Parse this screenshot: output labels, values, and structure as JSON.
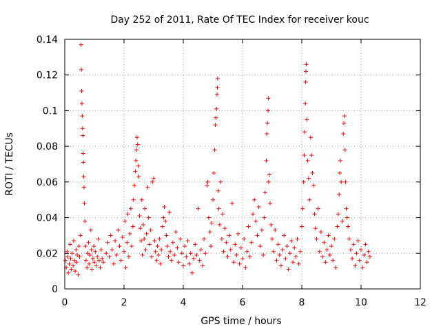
{
  "chart_data": {
    "type": "scatter",
    "title": "Day 252 of 2011, Rate Of TEC Index for receiver kouc",
    "xlabel": "GPS time / hours",
    "ylabel": "ROTI / TECUs",
    "xlim": [
      0,
      12
    ],
    "ylim": [
      0,
      0.14
    ],
    "xticks": [
      0,
      2,
      4,
      6,
      8,
      10,
      12
    ],
    "xtick_labels": [
      "0",
      "2",
      "4",
      "6",
      "8",
      "10",
      "12"
    ],
    "yticks": [
      0,
      0.02,
      0.04,
      0.06,
      0.08,
      0.1,
      0.12,
      0.14
    ],
    "ytick_labels": [
      "0",
      "0.02",
      "0.04",
      "0.06",
      "0.08",
      "0.1",
      "0.12",
      "0.14"
    ],
    "grid": true,
    "marker": "+",
    "marker_color": "#ff0000",
    "series": [
      {
        "points": [
          [
            0.02,
            0.016
          ],
          [
            0.05,
            0.012
          ],
          [
            0.08,
            0.021
          ],
          [
            0.1,
            0.018
          ],
          [
            0.12,
            0.009
          ],
          [
            0.15,
            0.014
          ],
          [
            0.18,
            0.025
          ],
          [
            0.2,
            0.017
          ],
          [
            0.22,
            0.011
          ],
          [
            0.25,
            0.02
          ],
          [
            0.28,
            0.013
          ],
          [
            0.3,
            0.027
          ],
          [
            0.32,
            0.016
          ],
          [
            0.35,
            0.01
          ],
          [
            0.38,
            0.022
          ],
          [
            0.4,
            0.015
          ],
          [
            0.42,
            0.019
          ],
          [
            0.45,
            0.008
          ],
          [
            0.48,
            0.024
          ],
          [
            0.5,
            0.018
          ],
          [
            0.53,
            0.03
          ],
          [
            0.55,
            0.137
          ],
          [
            0.56,
            0.123
          ],
          [
            0.57,
            0.111
          ],
          [
            0.58,
            0.104
          ],
          [
            0.59,
            0.097
          ],
          [
            0.6,
            0.09
          ],
          [
            0.61,
            0.086
          ],
          [
            0.62,
            0.076
          ],
          [
            0.63,
            0.071
          ],
          [
            0.64,
            0.063
          ],
          [
            0.65,
            0.057
          ],
          [
            0.66,
            0.048
          ],
          [
            0.68,
            0.038
          ],
          [
            0.7,
            0.024
          ],
          [
            0.72,
            0.016
          ],
          [
            0.75,
            0.012
          ],
          [
            0.78,
            0.02
          ],
          [
            0.8,
            0.026
          ],
          [
            0.82,
            0.014
          ],
          [
            0.85,
            0.019
          ],
          [
            0.88,
            0.033
          ],
          [
            0.9,
            0.022
          ],
          [
            0.92,
            0.011
          ],
          [
            0.95,
            0.017
          ],
          [
            0.98,
            0.024
          ],
          [
            1.0,
            0.015
          ],
          [
            1.03,
            0.021
          ],
          [
            1.06,
            0.013
          ],
          [
            1.1,
            0.018
          ],
          [
            1.13,
            0.028
          ],
          [
            1.16,
            0.016
          ],
          [
            1.2,
            0.012
          ],
          [
            1.23,
            0.022
          ],
          [
            1.26,
            0.017
          ],
          [
            1.3,
            0.015
          ],
          [
            1.4,
            0.02
          ],
          [
            1.45,
            0.026
          ],
          [
            1.5,
            0.018
          ],
          [
            1.55,
            0.03
          ],
          [
            1.6,
            0.022
          ],
          [
            1.65,
            0.014
          ],
          [
            1.7,
            0.027
          ],
          [
            1.75,
            0.019
          ],
          [
            1.8,
            0.033
          ],
          [
            1.85,
            0.024
          ],
          [
            1.9,
            0.016
          ],
          [
            1.95,
            0.029
          ],
          [
            2.0,
            0.021
          ],
          [
            2.03,
            0.038
          ],
          [
            2.06,
            0.012
          ],
          [
            2.1,
            0.026
          ],
          [
            2.13,
            0.042
          ],
          [
            2.16,
            0.018
          ],
          [
            2.2,
            0.031
          ],
          [
            2.23,
            0.045
          ],
          [
            2.26,
            0.024
          ],
          [
            2.3,
            0.035
          ],
          [
            2.32,
            0.05
          ],
          [
            2.35,
            0.058
          ],
          [
            2.38,
            0.066
          ],
          [
            2.4,
            0.072
          ],
          [
            2.42,
            0.078
          ],
          [
            2.44,
            0.085
          ],
          [
            2.46,
            0.081
          ],
          [
            2.48,
            0.069
          ],
          [
            2.5,
            0.063
          ],
          [
            2.52,
            0.041
          ],
          [
            2.55,
            0.034
          ],
          [
            2.58,
            0.027
          ],
          [
            2.6,
            0.05
          ],
          [
            2.62,
            0.019
          ],
          [
            2.65,
            0.036
          ],
          [
            2.68,
            0.028
          ],
          [
            2.7,
            0.045
          ],
          [
            2.73,
            0.022
          ],
          [
            2.76,
            0.031
          ],
          [
            2.8,
            0.057
          ],
          [
            2.83,
            0.04
          ],
          [
            2.86,
            0.025
          ],
          [
            2.9,
            0.033
          ],
          [
            2.93,
            0.018
          ],
          [
            2.96,
            0.06
          ],
          [
            3.0,
            0.062
          ],
          [
            3.03,
            0.027
          ],
          [
            3.06,
            0.021
          ],
          [
            3.1,
            0.016
          ],
          [
            3.13,
            0.024
          ],
          [
            3.16,
            0.019
          ],
          [
            3.2,
            0.028
          ],
          [
            3.23,
            0.014
          ],
          [
            3.26,
            0.022
          ],
          [
            3.3,
            0.035
          ],
          [
            3.33,
            0.04
          ],
          [
            3.36,
            0.046
          ],
          [
            3.4,
            0.038
          ],
          [
            3.43,
            0.03
          ],
          [
            3.46,
            0.024
          ],
          [
            3.5,
            0.018
          ],
          [
            3.53,
            0.043
          ],
          [
            3.56,
            0.021
          ],
          [
            3.6,
            0.016
          ],
          [
            3.65,
            0.026
          ],
          [
            3.7,
            0.019
          ],
          [
            3.75,
            0.032
          ],
          [
            3.8,
            0.023
          ],
          [
            3.85,
            0.015
          ],
          [
            3.9,
            0.028
          ],
          [
            3.95,
            0.02
          ],
          [
            4.0,
            0.013
          ],
          [
            4.05,
            0.024
          ],
          [
            4.1,
            0.018
          ],
          [
            4.15,
            0.027
          ],
          [
            4.2,
            0.014
          ],
          [
            4.25,
            0.02
          ],
          [
            4.3,
            0.009
          ],
          [
            4.35,
            0.017
          ],
          [
            4.4,
            0.025
          ],
          [
            4.45,
            0.019
          ],
          [
            4.5,
            0.045
          ],
          [
            4.55,
            0.016
          ],
          [
            4.6,
            0.022
          ],
          [
            4.65,
            0.013
          ],
          [
            4.7,
            0.028
          ],
          [
            4.75,
            0.02
          ],
          [
            4.8,
            0.058
          ],
          [
            4.83,
            0.06
          ],
          [
            4.86,
            0.04
          ],
          [
            4.9,
            0.032
          ],
          [
            4.93,
            0.024
          ],
          [
            4.96,
            0.037
          ],
          [
            5.0,
            0.05
          ],
          [
            5.03,
            0.065
          ],
          [
            5.06,
            0.078
          ],
          [
            5.08,
            0.092
          ],
          [
            5.1,
            0.096
          ],
          [
            5.12,
            0.101
          ],
          [
            5.14,
            0.109
          ],
          [
            5.15,
            0.113
          ],
          [
            5.16,
            0.118
          ],
          [
            5.18,
            0.055
          ],
          [
            5.2,
            0.045
          ],
          [
            5.23,
            0.036
          ],
          [
            5.26,
            0.06
          ],
          [
            5.3,
            0.028
          ],
          [
            5.33,
            0.042
          ],
          [
            5.36,
            0.021
          ],
          [
            5.4,
            0.034
          ],
          [
            5.45,
            0.026
          ],
          [
            5.5,
            0.018
          ],
          [
            5.55,
            0.03
          ],
          [
            5.6,
            0.022
          ],
          [
            5.65,
            0.048
          ],
          [
            5.7,
            0.015
          ],
          [
            5.75,
            0.025
          ],
          [
            5.8,
            0.019
          ],
          [
            5.85,
            0.031
          ],
          [
            5.9,
            0.014
          ],
          [
            5.95,
            0.023
          ],
          [
            6.0,
            0.017
          ],
          [
            6.05,
            0.028
          ],
          [
            6.1,
            0.012
          ],
          [
            6.15,
            0.021
          ],
          [
            6.2,
            0.035
          ],
          [
            6.25,
            0.018
          ],
          [
            6.3,
            0.026
          ],
          [
            6.35,
            0.042
          ],
          [
            6.4,
            0.05
          ],
          [
            6.45,
            0.038
          ],
          [
            6.5,
            0.03
          ],
          [
            6.55,
            0.046
          ],
          [
            6.6,
            0.024
          ],
          [
            6.65,
            0.033
          ],
          [
            6.7,
            0.019
          ],
          [
            6.73,
            0.04
          ],
          [
            6.76,
            0.054
          ],
          [
            6.8,
            0.072
          ],
          [
            6.82,
            0.087
          ],
          [
            6.84,
            0.093
          ],
          [
            6.86,
            0.1
          ],
          [
            6.87,
            0.107
          ],
          [
            6.88,
            0.06
          ],
          [
            6.9,
            0.064
          ],
          [
            6.93,
            0.048
          ],
          [
            6.96,
            0.036
          ],
          [
            7.0,
            0.028
          ],
          [
            7.05,
            0.021
          ],
          [
            7.1,
            0.033
          ],
          [
            7.15,
            0.016
          ],
          [
            7.2,
            0.025
          ],
          [
            7.25,
            0.019
          ],
          [
            7.3,
            0.013
          ],
          [
            7.35,
            0.022
          ],
          [
            7.4,
            0.03
          ],
          [
            7.45,
            0.017
          ],
          [
            7.5,
            0.024
          ],
          [
            7.55,
            0.011
          ],
          [
            7.6,
            0.02
          ],
          [
            7.65,
            0.027
          ],
          [
            7.7,
            0.015
          ],
          [
            7.75,
            0.023
          ],
          [
            7.8,
            0.018
          ],
          [
            7.85,
            0.028
          ],
          [
            7.9,
            0.014
          ],
          [
            7.95,
            0.021
          ],
          [
            8.0,
            0.035
          ],
          [
            8.03,
            0.045
          ],
          [
            8.06,
            0.06
          ],
          [
            8.08,
            0.075
          ],
          [
            8.1,
            0.088
          ],
          [
            8.12,
            0.104
          ],
          [
            8.13,
            0.116
          ],
          [
            8.14,
            0.122
          ],
          [
            8.15,
            0.126
          ],
          [
            8.17,
            0.095
          ],
          [
            8.2,
            0.072
          ],
          [
            8.23,
            0.062
          ],
          [
            8.26,
            0.05
          ],
          [
            8.3,
            0.085
          ],
          [
            8.33,
            0.075
          ],
          [
            8.36,
            0.065
          ],
          [
            8.4,
            0.058
          ],
          [
            8.43,
            0.042
          ],
          [
            8.46,
            0.034
          ],
          [
            8.5,
            0.028
          ],
          [
            8.55,
            0.045
          ],
          [
            8.6,
            0.021
          ],
          [
            8.65,
            0.032
          ],
          [
            8.7,
            0.018
          ],
          [
            8.75,
            0.026
          ],
          [
            8.8,
            0.015
          ],
          [
            8.85,
            0.022
          ],
          [
            8.9,
            0.03
          ],
          [
            8.95,
            0.019
          ],
          [
            9.0,
            0.024
          ],
          [
            9.05,
            0.016
          ],
          [
            9.1,
            0.028
          ],
          [
            9.15,
            0.012
          ],
          [
            9.2,
            0.035
          ],
          [
            9.23,
            0.042
          ],
          [
            9.26,
            0.053
          ],
          [
            9.28,
            0.065
          ],
          [
            9.3,
            0.072
          ],
          [
            9.33,
            0.06
          ],
          [
            9.36,
            0.038
          ],
          [
            9.4,
            0.087
          ],
          [
            9.42,
            0.093
          ],
          [
            9.44,
            0.097
          ],
          [
            9.46,
            0.078
          ],
          [
            9.48,
            0.06
          ],
          [
            9.5,
            0.045
          ],
          [
            9.53,
            0.04
          ],
          [
            9.56,
            0.035
          ],
          [
            9.6,
            0.028
          ],
          [
            9.65,
            0.022
          ],
          [
            9.7,
            0.017
          ],
          [
            9.75,
            0.025
          ],
          [
            9.8,
            0.013
          ],
          [
            9.85,
            0.02
          ],
          [
            9.9,
            0.027
          ],
          [
            9.95,
            0.016
          ],
          [
            10.0,
            0.022
          ],
          [
            10.05,
            0.012
          ],
          [
            10.1,
            0.019
          ],
          [
            10.15,
            0.025
          ],
          [
            10.2,
            0.015
          ],
          [
            10.25,
            0.021
          ],
          [
            10.3,
            0.018
          ]
        ]
      }
    ]
  }
}
